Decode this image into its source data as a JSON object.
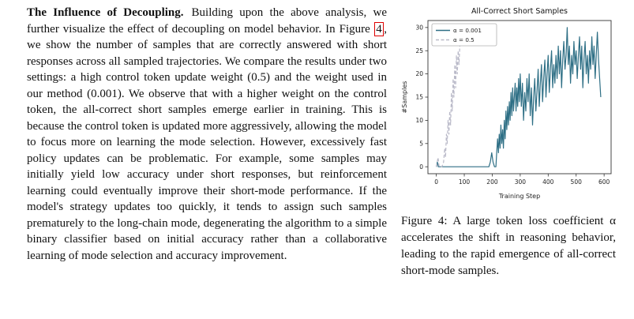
{
  "colors": {
    "figure_ref_box": "#dd0000",
    "series_teal": "#2e6f85",
    "series_gray": "#b9b9c8",
    "text": "#111111",
    "background": "#ffffff"
  },
  "left_column": {
    "heading": "The Influence of Decoupling.",
    "body_pre": "Building upon the above analysis, we further visualize the effect of decoupling on model behavior. In Figure ",
    "figure_ref": "4",
    "body_post": ", we show the number of samples that are correctly answered with short responses across all sampled trajectories. We compare the results under two settings: a high control token update weight (0.5) and the weight used in our method (0.001). We observe that with a higher weight on the control token, the all-correct short samples emerge earlier in training. This is because the control token is updated more aggressively, allowing the model to focus more on learning the mode selection. However, excessively fast policy updates can be problematic. For example, some samples may initially yield low accuracy under short responses, but reinforcement learning could eventually improve their short-mode performance. If the model's strategy updates too quickly, it tends to assign such samples prematurely to the long-chain mode, degenerating the algorithm to a simple binary classifier based on initial accuracy rather than a collaborative learning of mode selection and accuracy improvement."
  },
  "figure": {
    "caption": "Figure 4: A large token loss coefficient α accelerates the shift in reasoning behavior, leading to the rapid emergence of all-correct short-mode samples."
  },
  "chart_data": {
    "type": "line",
    "title": "All-Correct Short Samples",
    "xlabel": "Training Step",
    "ylabel": "#Samples",
    "xlim": [
      -30,
      625
    ],
    "ylim": [
      -1.5,
      31.5
    ],
    "xticks": [
      0,
      100,
      200,
      300,
      400,
      500,
      600
    ],
    "yticks": [
      0,
      5,
      10,
      15,
      20,
      25,
      30
    ],
    "legend_position": "upper left",
    "grid": false,
    "series": [
      {
        "name": "α = 0.001",
        "color": "#2e6f85",
        "dash": "solid",
        "points": [
          [
            0,
            0
          ],
          [
            4,
            1
          ],
          [
            7,
            0
          ],
          [
            188,
            0
          ],
          [
            193,
            1
          ],
          [
            198,
            3
          ],
          [
            203,
            1
          ],
          [
            208,
            0
          ],
          [
            213,
            0
          ],
          [
            216,
            3
          ],
          [
            219,
            6
          ],
          [
            222,
            3
          ],
          [
            225,
            7
          ],
          [
            228,
            4
          ],
          [
            231,
            9
          ],
          [
            234,
            5
          ],
          [
            237,
            8
          ],
          [
            240,
            4
          ],
          [
            243,
            10
          ],
          [
            246,
            6
          ],
          [
            249,
            12
          ],
          [
            252,
            8
          ],
          [
            255,
            13
          ],
          [
            258,
            9
          ],
          [
            261,
            14
          ],
          [
            264,
            10
          ],
          [
            267,
            16
          ],
          [
            270,
            11
          ],
          [
            273,
            17
          ],
          [
            276,
            12
          ],
          [
            279,
            15
          ],
          [
            282,
            18
          ],
          [
            285,
            12
          ],
          [
            288,
            17
          ],
          [
            291,
            13
          ],
          [
            294,
            19
          ],
          [
            297,
            14
          ],
          [
            300,
            20
          ],
          [
            304,
            13
          ],
          [
            308,
            18
          ],
          [
            312,
            10
          ],
          [
            316,
            16
          ],
          [
            320,
            12
          ],
          [
            324,
            19
          ],
          [
            328,
            14
          ],
          [
            332,
            20
          ],
          [
            336,
            11
          ],
          [
            340,
            17
          ],
          [
            344,
            9
          ],
          [
            348,
            15
          ],
          [
            352,
            19
          ],
          [
            356,
            12
          ],
          [
            360,
            16
          ],
          [
            364,
            21
          ],
          [
            368,
            13
          ],
          [
            372,
            18
          ],
          [
            376,
            22
          ],
          [
            380,
            14
          ],
          [
            384,
            19
          ],
          [
            388,
            23
          ],
          [
            392,
            15
          ],
          [
            396,
            20
          ],
          [
            400,
            24
          ],
          [
            404,
            16
          ],
          [
            408,
            21
          ],
          [
            412,
            25
          ],
          [
            416,
            17
          ],
          [
            420,
            22
          ],
          [
            424,
            18
          ],
          [
            428,
            24
          ],
          [
            432,
            19
          ],
          [
            436,
            26
          ],
          [
            440,
            20
          ],
          [
            444,
            25
          ],
          [
            448,
            17
          ],
          [
            452,
            23
          ],
          [
            456,
            27
          ],
          [
            460,
            21
          ],
          [
            464,
            24
          ],
          [
            468,
            30
          ],
          [
            472,
            22
          ],
          [
            476,
            26
          ],
          [
            480,
            18
          ],
          [
            484,
            24
          ],
          [
            488,
            20
          ],
          [
            492,
            27
          ],
          [
            496,
            22
          ],
          [
            500,
            25
          ],
          [
            504,
            19
          ],
          [
            508,
            24
          ],
          [
            512,
            28
          ],
          [
            516,
            21
          ],
          [
            520,
            26
          ],
          [
            524,
            17
          ],
          [
            528,
            23
          ],
          [
            532,
            27
          ],
          [
            536,
            20
          ],
          [
            540,
            24
          ],
          [
            544,
            18
          ],
          [
            548,
            25
          ],
          [
            552,
            21
          ],
          [
            556,
            28
          ],
          [
            560,
            22
          ],
          [
            564,
            26
          ],
          [
            568,
            19
          ],
          [
            572,
            24
          ],
          [
            576,
            29
          ],
          [
            580,
            23
          ],
          [
            584,
            19
          ],
          [
            588,
            15
          ]
        ]
      },
      {
        "name": "α = 0.5",
        "color": "#b9b9c8",
        "dash": "dashed",
        "points": [
          [
            0,
            0
          ],
          [
            6,
            2
          ],
          [
            10,
            0
          ],
          [
            20,
            0
          ],
          [
            26,
            1
          ],
          [
            30,
            4
          ],
          [
            33,
            2
          ],
          [
            36,
            7
          ],
          [
            39,
            5
          ],
          [
            42,
            10
          ],
          [
            45,
            7
          ],
          [
            48,
            12
          ],
          [
            51,
            9
          ],
          [
            54,
            16
          ],
          [
            57,
            12
          ],
          [
            60,
            19
          ],
          [
            63,
            15
          ],
          [
            66,
            22
          ],
          [
            69,
            17
          ],
          [
            72,
            24
          ],
          [
            75,
            20
          ],
          [
            78,
            25
          ],
          [
            81,
            22
          ],
          [
            84,
            26
          ]
        ]
      }
    ]
  }
}
